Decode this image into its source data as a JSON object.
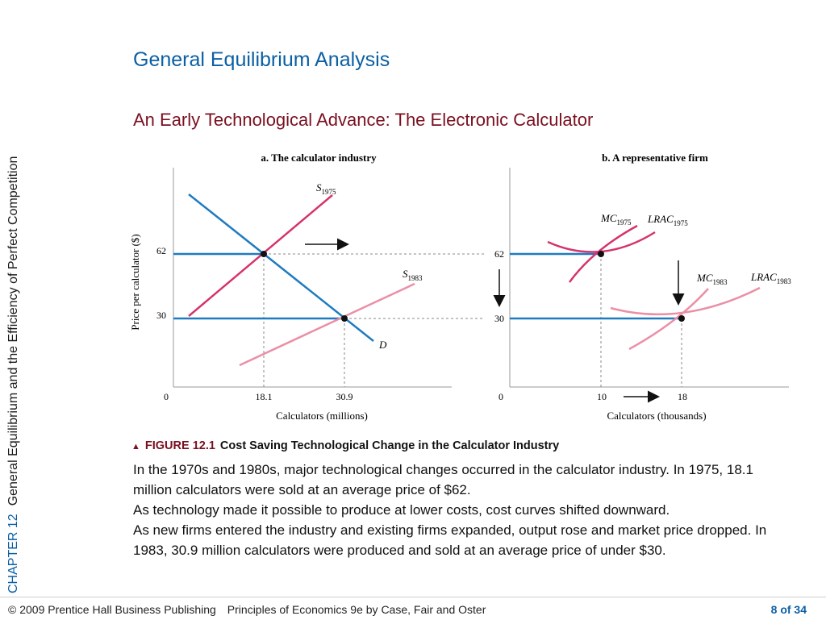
{
  "sidebar": {
    "chapter": "CHAPTER 12",
    "chapter_title": "General Equilibrium and the Efficiency of Perfect Competition"
  },
  "slide": {
    "title": "General Equilibrium Analysis",
    "subtitle": "An Early Technological Advance: The Electronic Calculator"
  },
  "figure": {
    "panel_a": {
      "title": "a. The calculator industry",
      "ylabel": "Price per calculator ($)",
      "xlabel": "Calculators (millions)",
      "origin": "0",
      "y_ticks": [
        "62",
        "30"
      ],
      "x_ticks": [
        "18.1",
        "30.9"
      ],
      "curves": {
        "s1975_base": "S",
        "s1975_sub": "1975",
        "s1983_base": "S",
        "s1983_sub": "1983",
        "d": "D"
      }
    },
    "panel_b": {
      "title": "b. A representative firm",
      "xlabel": "Calculators (thousands)",
      "origin": "0",
      "y_ticks": [
        "62",
        "30"
      ],
      "x_ticks": [
        "10",
        "18"
      ],
      "curves": {
        "mc1975_base": "MC",
        "mc1975_sub": "1975",
        "lrac1975_base": "LRAC",
        "lrac1975_sub": "1975",
        "mc1983_base": "MC",
        "mc1983_sub": "1983",
        "lrac1983_base": "LRAC",
        "lrac1983_sub": "1983"
      }
    },
    "colors": {
      "supply1975": "#d6336c",
      "supply1983": "#eb8fa6",
      "demand": "#1f7bc0",
      "price_line": "#1f7bc0",
      "dashed": "#888888"
    }
  },
  "caption": {
    "number": "FIGURE 12.1",
    "title": "Cost Saving Technological Change in the Calculator Industry",
    "paragraphs": [
      "In the 1970s and 1980s, major technological changes occurred in the calculator industry. In 1975, 18.1 million calculators were sold at an average price of $62.",
      "As technology made it possible to produce at lower costs, cost curves shifted downward.",
      "As new firms entered the industry and existing firms expanded, output rose and market price dropped. In 1983, 30.9 million calculators were produced and sold at an average price of under $30."
    ]
  },
  "footer": {
    "copyright": "© 2009 Prentice Hall Business Publishing",
    "book": "Principles of Economics 9e by Case, Fair and Oster",
    "page": "8 of 34"
  }
}
